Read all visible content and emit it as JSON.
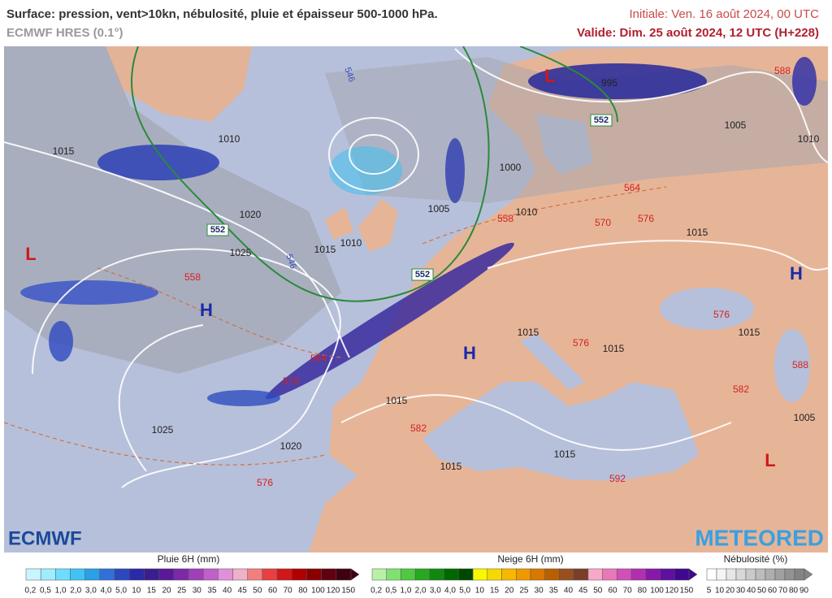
{
  "header": {
    "title": "Surface: pression, vent>10kn, nébulosité, pluie et épaisseur 500-1000 hPa.",
    "model": "ECMWF HRES (0.1°)",
    "initial": "Initiale: Ven. 16 août 2024, 00 UTC",
    "valid": "Valide: Dim. 25 août 2024, 12 UTC (H+228)"
  },
  "map": {
    "pressure_centers": [
      "L",
      "L",
      "L",
      "H",
      "H",
      "H"
    ],
    "isobar_labels": [
      "1015",
      "1010",
      "1020",
      "1025",
      "1015",
      "1010",
      "1005",
      "1000",
      "1010",
      "995",
      "1015",
      "1010",
      "1005",
      "1015",
      "1015",
      "1015",
      "1025",
      "1020",
      "1015",
      "1015",
      "1015",
      "1005"
    ],
    "thickness_labels": [
      "558",
      "564",
      "570",
      "576",
      "582",
      "564",
      "570",
      "576",
      "558",
      "576",
      "582",
      "588",
      "588",
      "576",
      "592"
    ],
    "thickness_552_labels": [
      "552",
      "552",
      "552"
    ],
    "thickness_546_labels": [
      "546",
      "546"
    ]
  },
  "logos": {
    "left": "ECMWF",
    "right": "METEORED"
  },
  "legends": [
    {
      "title": "Pluie 6H (mm)",
      "labels": [
        "0,2",
        "0,5",
        "1,0",
        "2,0",
        "3,0",
        "4,0",
        "5,0",
        "10",
        "15",
        "20",
        "25",
        "30",
        "35",
        "40",
        "45",
        "50",
        "60",
        "70",
        "80",
        "100",
        "120",
        "150"
      ],
      "colors": [
        "#c8f5ff",
        "#a0ecff",
        "#6fdcff",
        "#3fc4f5",
        "#2aa0e6",
        "#3070d8",
        "#2a48c0",
        "#2a2aa8",
        "#3a1e90",
        "#5a1a98",
        "#7a2aa8",
        "#a040b8",
        "#c060c8",
        "#e090d8",
        "#f0b0c8",
        "#f08080",
        "#e84040",
        "#d01818",
        "#b00000",
        "#8a0000",
        "#600010",
        "#400010"
      ]
    },
    {
      "title": "Neige 6H (mm)",
      "labels": [
        "0,2",
        "0,5",
        "1,0",
        "2,0",
        "3,0",
        "4,0",
        "5,0",
        "10",
        "15",
        "20",
        "25",
        "30",
        "35",
        "40",
        "45",
        "50",
        "60",
        "70",
        "80",
        "100",
        "120",
        "150"
      ],
      "colors": [
        "#b8f0a8",
        "#80e070",
        "#50c840",
        "#28a820",
        "#108810",
        "#006800",
        "#004800",
        "#f8f800",
        "#f8d800",
        "#f8b800",
        "#f09800",
        "#d87800",
        "#b86000",
        "#985020",
        "#784028",
        "#f8a8c8",
        "#e878b8",
        "#d050b8",
        "#b030b0",
        "#8818a8",
        "#6010a0",
        "#400890"
      ]
    },
    {
      "title": "Nébulosité (%)",
      "labels": [
        "5",
        "10",
        "20",
        "30",
        "40",
        "50",
        "60",
        "70",
        "80",
        "90"
      ],
      "colors": [
        "#ffffff",
        "#f4f4f4",
        "#e6e6e6",
        "#d8d8d8",
        "#cacaca",
        "#bcbcbc",
        "#aeaeae",
        "#a0a0a0",
        "#929292",
        "#848484"
      ]
    }
  ]
}
